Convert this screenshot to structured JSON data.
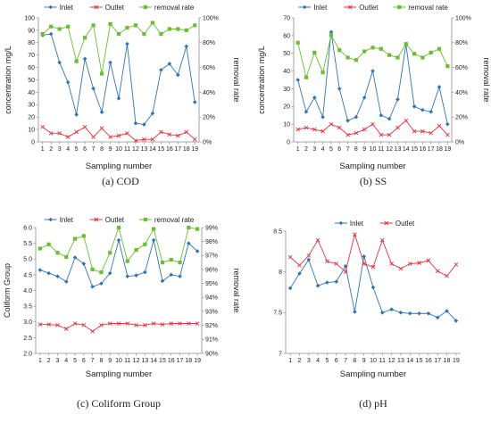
{
  "colors": {
    "inlet": "#2e75b6",
    "outlet": "#e8323c",
    "removal": "#6abf2e",
    "axis": "#8c8c8c",
    "grid": "#d9d9d9"
  },
  "chart_data": [
    {
      "id": "cod",
      "type": "line",
      "caption": "(a)  COD",
      "xlabel": "Sampling number",
      "ylabel": "concentration mg/L",
      "y2label": "removal rate",
      "x": [
        1,
        2,
        3,
        4,
        5,
        6,
        7,
        8,
        9,
        10,
        11,
        12,
        13,
        14,
        15,
        16,
        17,
        18,
        19
      ],
      "x_ticks": [
        "1",
        "2",
        "3",
        "4",
        "5",
        "6",
        "7",
        "8",
        "9",
        "10",
        "11",
        "12",
        "13",
        "14",
        "15",
        "16",
        "17",
        "18",
        "19"
      ],
      "ylim": [
        0,
        100
      ],
      "y_ticks": [
        "0",
        "10",
        "20",
        "30",
        "40",
        "50",
        "60",
        "70",
        "80",
        "90",
        "100"
      ],
      "y2lim": [
        0,
        100
      ],
      "y2_ticks": [
        "0%",
        "20%",
        "40%",
        "60%",
        "80%",
        "100%"
      ],
      "legend_position": "top",
      "series": [
        {
          "name": "Inlet",
          "axis": "left",
          "marker": "diamond",
          "values": [
            86,
            87,
            64,
            48,
            22,
            67,
            43,
            24,
            64,
            35,
            79,
            15,
            14,
            23,
            58,
            63,
            54,
            77,
            32
          ]
        },
        {
          "name": "Outlet",
          "axis": "left",
          "marker": "x",
          "values": [
            12,
            7,
            7,
            4,
            8,
            12,
            4,
            11,
            4,
            5,
            7,
            1,
            2,
            2,
            8,
            6,
            5,
            8,
            2
          ]
        },
        {
          "name": "removal rate",
          "axis": "right",
          "marker": "square",
          "values": [
            87,
            93,
            91,
            93,
            65,
            84,
            94,
            55,
            95,
            87,
            92,
            94,
            87,
            96,
            87,
            91,
            91,
            90,
            94
          ]
        }
      ]
    },
    {
      "id": "ss",
      "type": "line",
      "caption": "(b)  SS",
      "xlabel": "Sampling number",
      "ylabel": "concentration mg/L",
      "y2label": "removal rate",
      "x": [
        1,
        2,
        3,
        4,
        5,
        6,
        7,
        8,
        9,
        10,
        11,
        12,
        13,
        14,
        15,
        16,
        17,
        18,
        19
      ],
      "x_ticks": [
        "1",
        "2",
        "3",
        "4",
        "5",
        "6",
        "7",
        "8",
        "9",
        "10",
        "11",
        "12",
        "13",
        "14",
        "15",
        "16",
        "17",
        "18",
        "19"
      ],
      "ylim": [
        0,
        70
      ],
      "y_ticks": [
        "0",
        "10",
        "20",
        "30",
        "40",
        "50",
        "60",
        "70"
      ],
      "y2lim": [
        0,
        100
      ],
      "y2_ticks": [
        "0%",
        "20%",
        "40%",
        "60%",
        "80%",
        "100%"
      ],
      "legend_position": "top",
      "series": [
        {
          "name": "Inlet",
          "axis": "left",
          "marker": "diamond",
          "values": [
            35,
            17,
            25,
            14,
            62,
            30,
            12,
            14,
            25,
            40,
            15,
            13,
            24,
            55,
            20,
            18,
            17,
            31,
            10
          ]
        },
        {
          "name": "Outlet",
          "axis": "left",
          "marker": "x",
          "values": [
            7,
            8,
            7,
            6,
            10,
            8,
            4,
            5,
            7,
            10,
            4,
            4,
            8,
            12,
            6,
            6,
            5,
            9,
            4
          ]
        },
        {
          "name": "removal rate",
          "axis": "right",
          "marker": "square",
          "values": [
            80,
            52,
            72,
            56,
            86,
            74,
            68,
            66,
            73,
            76,
            75,
            70,
            68,
            79,
            71,
            68,
            72,
            75,
            61
          ]
        }
      ]
    },
    {
      "id": "coliform",
      "type": "line",
      "caption": "(c)  Coliform Group",
      "xlabel": "Sampling number",
      "ylabel": "Coliform Group",
      "y2label": "removal rate",
      "x": [
        1,
        2,
        3,
        4,
        5,
        6,
        7,
        8,
        9,
        10,
        11,
        12,
        13,
        14,
        15,
        16,
        17,
        18,
        19
      ],
      "x_ticks": [
        "1",
        "2",
        "3",
        "4",
        "5",
        "6",
        "7",
        "8",
        "9",
        "10",
        "11",
        "12",
        "13",
        "14",
        "15",
        "16",
        "17",
        "18",
        "19"
      ],
      "ylim": [
        2.0,
        6.0
      ],
      "y_ticks": [
        "2.0",
        "2.5",
        "3.0",
        "3.5",
        "4.0",
        "4.5",
        "5.0",
        "5.5",
        "6.0"
      ],
      "y2lim": [
        90,
        99
      ],
      "y2_ticks": [
        "90%",
        "91%",
        "92%",
        "93%",
        "94%",
        "95%",
        "96%",
        "97%",
        "98%",
        "99%"
      ],
      "legend_position": "top",
      "series": [
        {
          "name": "Inlet",
          "axis": "left",
          "marker": "diamond",
          "values": [
            4.65,
            4.55,
            4.45,
            4.28,
            5.05,
            4.85,
            4.12,
            4.22,
            4.55,
            5.6,
            4.45,
            4.48,
            4.58,
            5.6,
            4.3,
            4.5,
            4.45,
            5.5,
            5.25
          ]
        },
        {
          "name": "Outlet",
          "axis": "left",
          "marker": "x",
          "values": [
            2.92,
            2.92,
            2.9,
            2.78,
            2.95,
            2.9,
            2.7,
            2.9,
            2.95,
            2.95,
            2.95,
            2.9,
            2.9,
            2.95,
            2.92,
            2.95,
            2.95,
            2.95,
            2.95
          ]
        },
        {
          "name": "removal rate",
          "axis": "right",
          "marker": "square",
          "values": [
            97.5,
            97.8,
            97.2,
            96.9,
            98.2,
            98.4,
            96.0,
            95.8,
            97.2,
            99.0,
            96.6,
            97.4,
            97.8,
            98.9,
            96.5,
            96.7,
            96.5,
            99.0,
            98.9
          ]
        }
      ]
    },
    {
      "id": "ph",
      "type": "line",
      "caption": "(d)  pH",
      "xlabel": "Sampling number",
      "ylabel": "",
      "y2label": "",
      "x": [
        1,
        2,
        3,
        4,
        5,
        6,
        7,
        8,
        9,
        10,
        11,
        12,
        13,
        14,
        15,
        16,
        17,
        18,
        19
      ],
      "x_ticks": [
        "1",
        "2",
        "3",
        "4",
        "5",
        "6",
        "7",
        "8",
        "9",
        "10",
        "11",
        "12",
        "13",
        "14",
        "15",
        "16",
        "17",
        "18",
        "19"
      ],
      "ylim": [
        7,
        8.5
      ],
      "y_ticks": [
        "7",
        "7.5",
        "8",
        "8.5"
      ],
      "legend_position": "top",
      "series": [
        {
          "name": "Inlet",
          "axis": "left",
          "marker": "diamond",
          "values": [
            7.8,
            7.98,
            8.15,
            7.83,
            7.87,
            7.88,
            8.07,
            7.51,
            8.19,
            7.81,
            7.5,
            7.54,
            7.5,
            7.49,
            7.49,
            7.49,
            7.44,
            7.52,
            7.4
          ]
        },
        {
          "name": "Outlet",
          "axis": "left",
          "marker": "x",
          "values": [
            8.18,
            8.08,
            8.2,
            8.39,
            8.13,
            8.1,
            8.0,
            8.46,
            8.1,
            8.06,
            8.39,
            8.1,
            8.04,
            8.1,
            8.11,
            8.14,
            8.01,
            7.95,
            8.09
          ]
        }
      ]
    }
  ]
}
